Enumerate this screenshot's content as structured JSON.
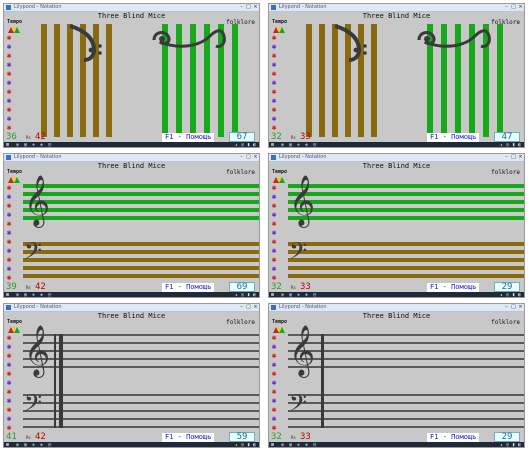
{
  "panels": [
    {
      "title_bar": "Lilypond - Notation",
      "song": "Three Blind Mice",
      "folk": "folklore",
      "tempo": "Tempo",
      "left_num": "36",
      "small": "Rs",
      "right_num": "42",
      "help": "F1 - Помощь",
      "score": "67",
      "bars_color": "#8a6a10",
      "bars2_color": "#17a81b"
    },
    {
      "title_bar": "Lilypond - Notation",
      "song": "Three Blind Mice",
      "folk": "folklore",
      "tempo": "Tempo",
      "left_num": "32",
      "small": "Rs",
      "right_num": "33",
      "help": "F1 - Помощь",
      "score": "47",
      "bars_color": "#8a6a10",
      "bars2_color": "#17a81b"
    },
    {
      "title_bar": "Lilypond - Notation",
      "song": "Three Blind Mice",
      "folk": "folklore",
      "tempo": "Tempo",
      "left_num": "39",
      "small": "Rs",
      "right_num": "42",
      "help": "F1 - Помощь",
      "score": "69"
    },
    {
      "title_bar": "Lilypond - Notation",
      "song": "Three Blind Mice",
      "folk": "folklore",
      "tempo": "Tempo",
      "left_num": "32",
      "small": "Rs",
      "right_num": "33",
      "help": "F1 - Помощь",
      "score": "29"
    },
    {
      "title_bar": "Lilypond - Notation",
      "song": "Three Blind Mice",
      "folk": "folklore",
      "tempo": "Tempo",
      "left_num": "41",
      "small": "Rs",
      "right_num": "42",
      "help": "F1 - Помощь",
      "score": "59"
    },
    {
      "title_bar": "Lilypond - Notation",
      "song": "Three Blind Mice",
      "folk": "folklore",
      "tempo": "Tempo",
      "left_num": "32",
      "small": "Rs",
      "right_num": "33",
      "help": "F1 - Помощь",
      "score": "29"
    }
  ],
  "icons": {
    "treble_clef": "treble-clef-icon",
    "bass_clef": "bass-clef-icon",
    "star": "star-icon",
    "tempo_flag": "tempo-flag-icon"
  },
  "colors": {
    "brown": "#8a6a10",
    "green": "#17a81b",
    "staff_gray": "#5a5a5a",
    "star_red": "#d0201a",
    "star_purple": "#6a2ac8"
  }
}
